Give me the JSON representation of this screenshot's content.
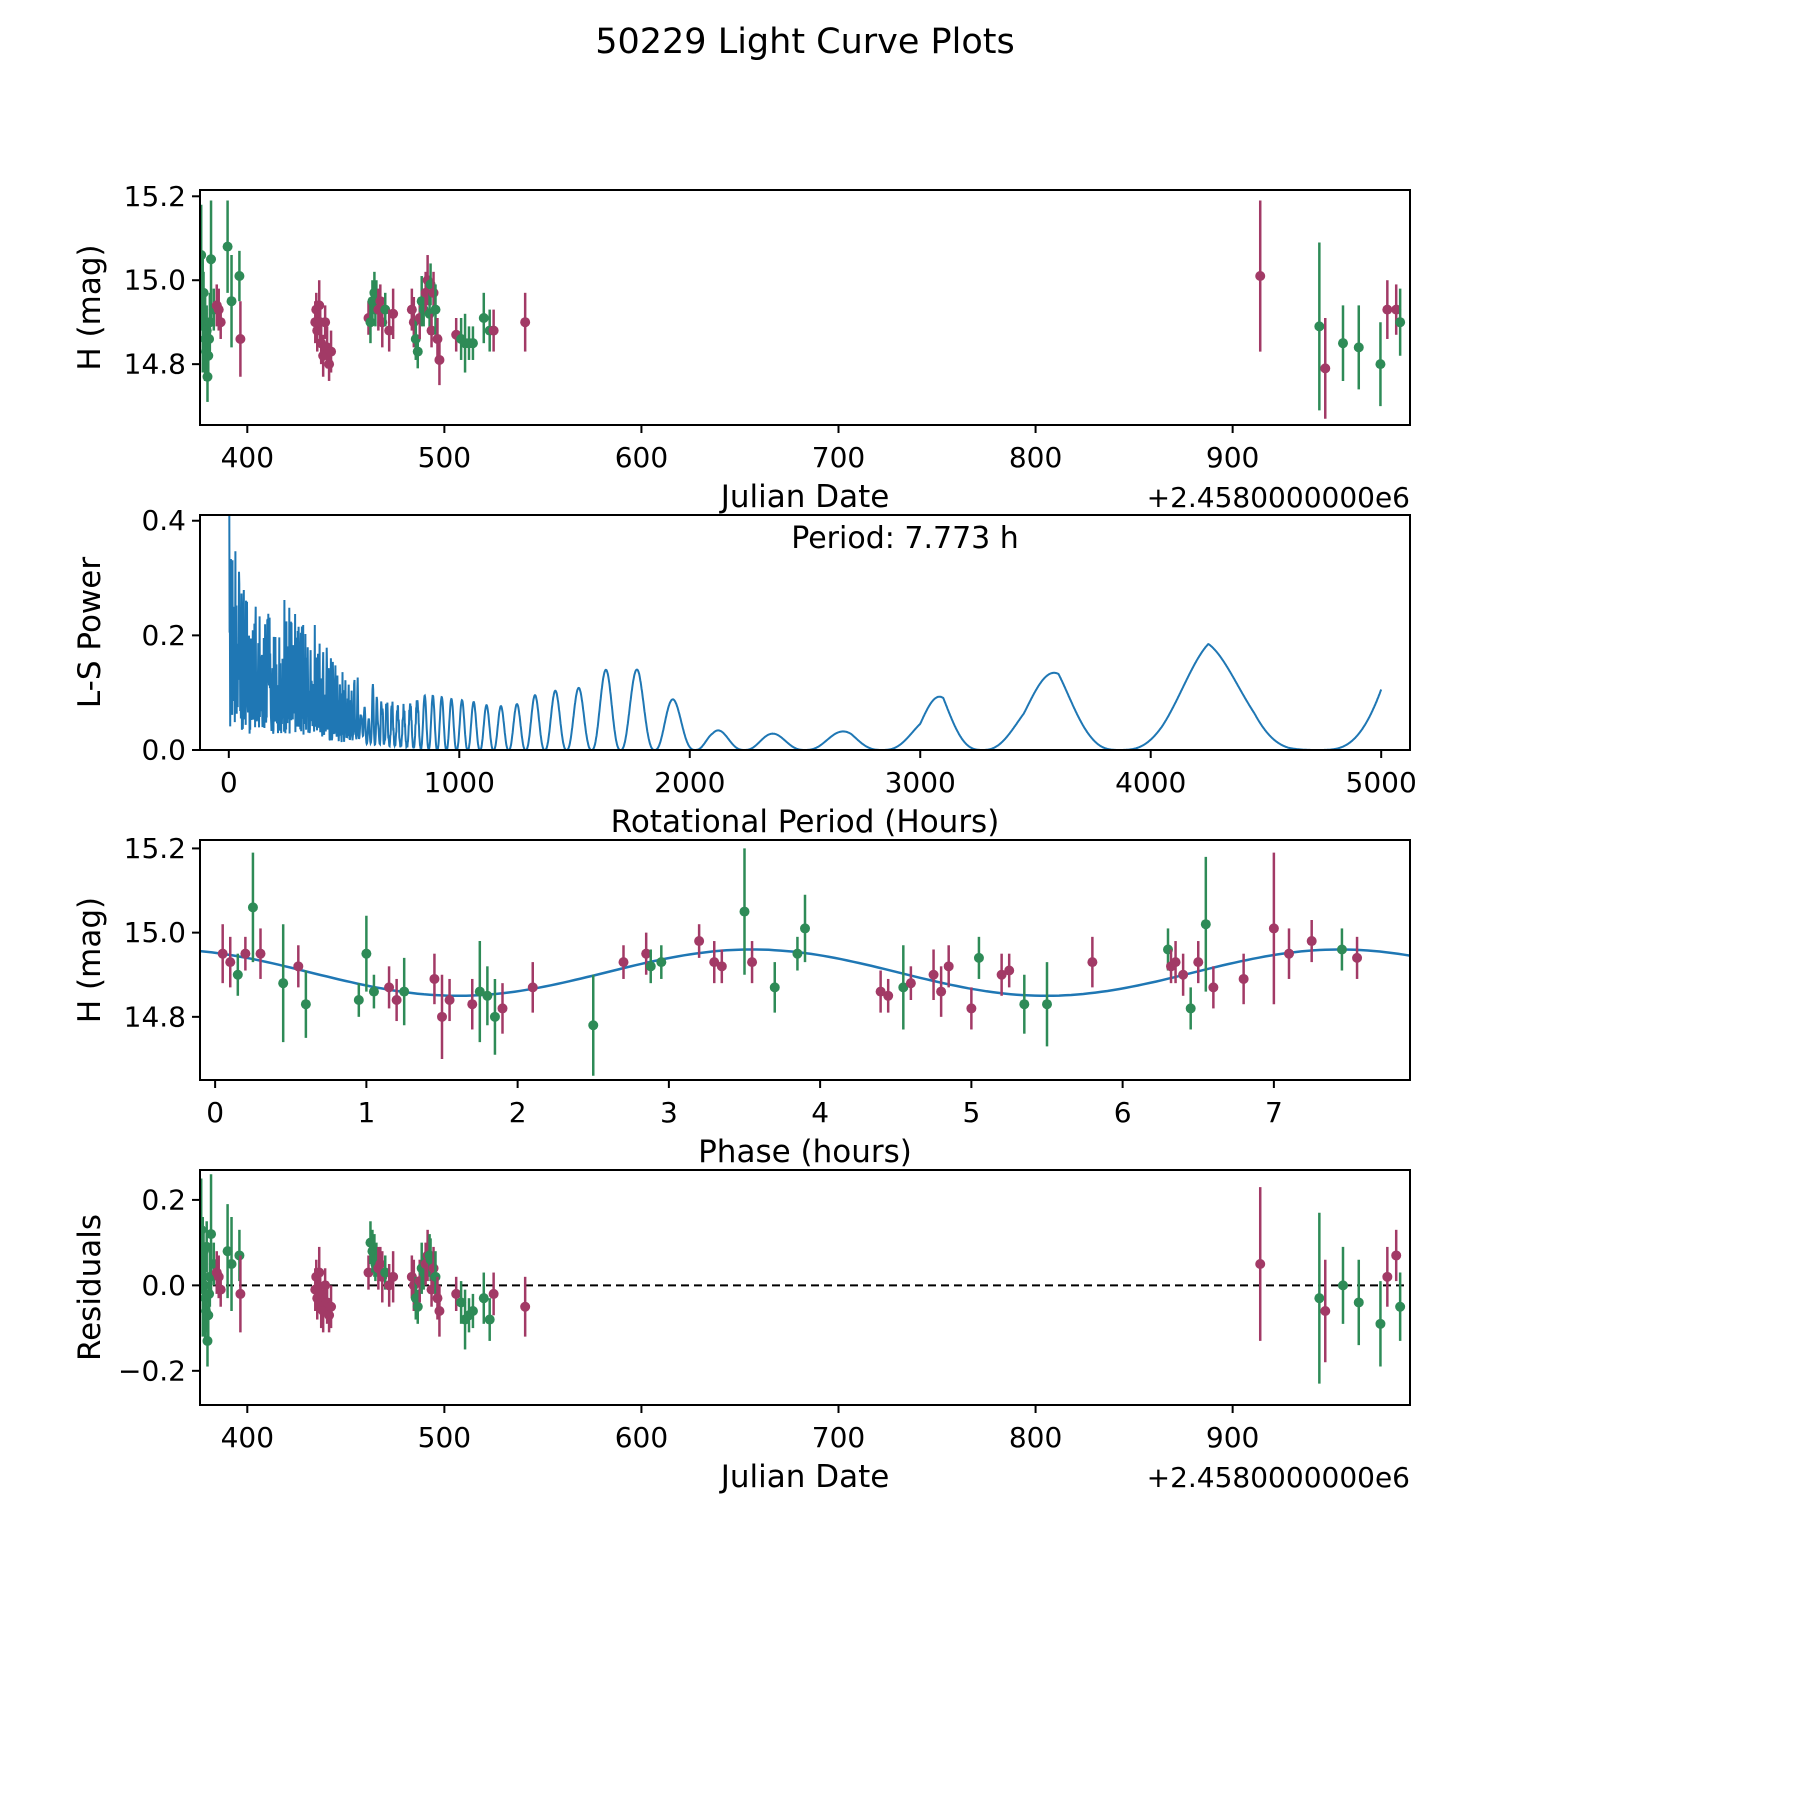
{
  "title": "50229 Light Curve Plots",
  "colors": {
    "green": "#2e8b57",
    "purple": "#a23a66",
    "line_blue": "#1f77b4",
    "axis": "#000000"
  },
  "chart_data": [
    {
      "type": "scatter",
      "id": "lightcurve",
      "xlabel": "Julian Date",
      "ylabel": "H (mag)",
      "x_offset_label": "+2.4580000000e6",
      "xlim": [
        376,
        990
      ],
      "ylim": [
        14.655,
        15.215
      ],
      "xticks": [
        400,
        500,
        600,
        700,
        800,
        900
      ],
      "xticklabels": [
        "400",
        "500",
        "600",
        "700",
        "800",
        "900"
      ],
      "yticks": [
        14.8,
        15.0,
        15.2
      ],
      "yticklabels": [
        "14.8",
        "15.0",
        "15.2"
      ],
      "points": [
        [
          376.6,
          15.06,
          0.12,
          "g",
          0.13
        ],
        [
          377.0,
          14.97,
          0.09,
          "g",
          0.07
        ],
        [
          377.4,
          14.92,
          0.14,
          "g",
          0.02
        ],
        [
          377.8,
          14.97,
          0.05,
          "g",
          0.08
        ],
        [
          378.2,
          14.9,
          0.06,
          "g",
          0.0
        ],
        [
          378.6,
          14.86,
          0.1,
          "g",
          -0.03
        ],
        [
          379.0,
          14.83,
          0.05,
          "g",
          -0.06
        ],
        [
          379.4,
          14.88,
          0.06,
          "g",
          0.09
        ],
        [
          379.8,
          14.77,
          0.06,
          "g",
          -0.13
        ],
        [
          380.2,
          14.82,
          0.05,
          "g",
          -0.07
        ],
        [
          380.6,
          14.86,
          0.05,
          "g",
          -0.02
        ],
        [
          381.0,
          14.9,
          0.07,
          "g",
          0.02
        ],
        [
          381.6,
          15.05,
          0.14,
          "g",
          0.12
        ],
        [
          383.0,
          14.93,
          0.05,
          "g",
          0.05
        ],
        [
          384.5,
          14.94,
          0.05,
          "p",
          0.03
        ],
        [
          385.5,
          14.93,
          0.05,
          "p",
          0.02
        ],
        [
          386.5,
          14.9,
          0.04,
          "p",
          -0.01
        ],
        [
          390.0,
          15.08,
          0.11,
          "g",
          0.08
        ],
        [
          392.0,
          14.95,
          0.11,
          "g",
          0.05
        ],
        [
          396.0,
          15.01,
          0.06,
          "g",
          0.07
        ],
        [
          396.5,
          14.86,
          0.09,
          "p",
          -0.02
        ],
        [
          434.5,
          14.9,
          0.05,
          "p",
          -0.01
        ],
        [
          435.0,
          14.93,
          0.04,
          "p",
          0.02
        ],
        [
          435.5,
          14.88,
          0.05,
          "p",
          -0.03
        ],
        [
          436.5,
          14.94,
          0.06,
          "p",
          0.03
        ],
        [
          437.0,
          14.9,
          0.04,
          "p",
          -0.02
        ],
        [
          437.5,
          14.85,
          0.05,
          "p",
          -0.05
        ],
        [
          438.5,
          14.82,
          0.05,
          "p",
          -0.06
        ],
        [
          439.5,
          14.9,
          0.04,
          "p",
          0.0
        ],
        [
          440.5,
          14.84,
          0.05,
          "p",
          -0.04
        ],
        [
          441.5,
          14.8,
          0.04,
          "p",
          -0.07
        ],
        [
          442.5,
          14.83,
          0.05,
          "p",
          -0.05
        ],
        [
          461.5,
          14.91,
          0.04,
          "p",
          0.03
        ],
        [
          462.5,
          14.9,
          0.05,
          "g",
          0.1
        ],
        [
          463.5,
          14.95,
          0.05,
          "g",
          0.08
        ],
        [
          464.5,
          14.97,
          0.05,
          "g",
          0.07
        ],
        [
          465.0,
          14.93,
          0.04,
          "g",
          0.05
        ],
        [
          465.5,
          14.96,
          0.04,
          "g",
          0.06
        ],
        [
          466.5,
          14.93,
          0.05,
          "p",
          0.04
        ],
        [
          467.5,
          14.95,
          0.04,
          "p",
          0.05
        ],
        [
          468.5,
          14.9,
          0.06,
          "p",
          0.02
        ],
        [
          470.0,
          14.93,
          0.04,
          "g",
          0.03
        ],
        [
          472.0,
          14.88,
          0.05,
          "p",
          0.0
        ],
        [
          474.0,
          14.92,
          0.06,
          "p",
          0.02
        ],
        [
          483.5,
          14.93,
          0.05,
          "p",
          0.02
        ],
        [
          484.5,
          14.9,
          0.06,
          "p",
          0.0
        ],
        [
          485.5,
          14.86,
          0.05,
          "g",
          -0.03
        ],
        [
          486.5,
          14.83,
          0.04,
          "g",
          -0.05
        ],
        [
          487.5,
          14.91,
          0.05,
          "p",
          0.01
        ],
        [
          488.5,
          14.95,
          0.06,
          "g",
          0.04
        ],
        [
          489.5,
          14.93,
          0.04,
          "g",
          0.03
        ],
        [
          490.5,
          14.97,
          0.05,
          "p",
          0.05
        ],
        [
          491.5,
          15.0,
          0.06,
          "p",
          0.07
        ],
        [
          492.5,
          14.92,
          0.05,
          "g",
          0.07
        ],
        [
          493.0,
          14.99,
          0.05,
          "g",
          0.06
        ],
        [
          493.5,
          14.88,
          0.04,
          "p",
          -0.01
        ],
        [
          494.5,
          14.97,
          0.05,
          "p",
          0.04
        ],
        [
          495.5,
          14.93,
          0.06,
          "g",
          0.02
        ],
        [
          496.5,
          14.86,
          0.05,
          "p",
          -0.03
        ],
        [
          497.5,
          14.81,
          0.06,
          "p",
          -0.06
        ],
        [
          506.0,
          14.87,
          0.04,
          "p",
          -0.02
        ],
        [
          508.5,
          14.86,
          0.05,
          "g",
          -0.04
        ],
        [
          510.5,
          14.85,
          0.07,
          "g",
          -0.08
        ],
        [
          512.5,
          14.85,
          0.04,
          "g",
          -0.07
        ],
        [
          514.5,
          14.85,
          0.04,
          "g",
          -0.06
        ],
        [
          520.0,
          14.91,
          0.06,
          "g",
          -0.03
        ],
        [
          523.0,
          14.88,
          0.05,
          "g",
          -0.08
        ],
        [
          525.0,
          14.88,
          0.05,
          "p",
          -0.02
        ],
        [
          541.0,
          14.9,
          0.07,
          "p",
          -0.05
        ],
        [
          914.0,
          15.01,
          0.18,
          "p",
          0.05
        ],
        [
          944.0,
          14.89,
          0.2,
          "g",
          -0.03
        ],
        [
          947.0,
          14.79,
          0.12,
          "p",
          -0.06
        ],
        [
          956.0,
          14.85,
          0.09,
          "g",
          0.0
        ],
        [
          964.0,
          14.84,
          0.1,
          "g",
          -0.04
        ],
        [
          975.0,
          14.8,
          0.1,
          "g",
          -0.09
        ],
        [
          978.5,
          14.93,
          0.07,
          "p",
          0.02
        ],
        [
          983.0,
          14.93,
          0.06,
          "p",
          0.07
        ],
        [
          985.0,
          14.9,
          0.08,
          "g",
          -0.05
        ]
      ]
    },
    {
      "type": "line",
      "id": "periodogram",
      "xlabel": "Rotational Period (Hours)",
      "ylabel": "L-S Power",
      "annotation": "Period: 7.773 h",
      "period_hours": 7.773,
      "xlim": [
        -125,
        5125
      ],
      "ylim": [
        0,
        0.41
      ],
      "xticks": [
        0,
        1000,
        2000,
        3000,
        4000,
        5000
      ],
      "xticklabels": [
        "0",
        "1000",
        "2000",
        "3000",
        "4000",
        "5000"
      ],
      "yticks": [
        0.0,
        0.2,
        0.4
      ],
      "yticklabels": [
        "0.0",
        "0.2",
        "0.4"
      ],
      "envelope": [
        [
          2,
          0.42
        ],
        [
          20,
          0.38
        ],
        [
          60,
          0.3
        ],
        [
          120,
          0.26
        ],
        [
          200,
          0.24
        ],
        [
          260,
          0.28
        ],
        [
          330,
          0.26
        ],
        [
          400,
          0.2
        ],
        [
          470,
          0.15
        ],
        [
          550,
          0.13
        ],
        [
          650,
          0.11
        ],
        [
          750,
          0.08
        ],
        [
          850,
          0.1
        ],
        [
          950,
          0.09
        ],
        [
          1050,
          0.085
        ],
        [
          1150,
          0.075
        ],
        [
          1250,
          0.08
        ],
        [
          1350,
          0.1
        ],
        [
          1450,
          0.105
        ],
        [
          1550,
          0.11
        ],
        [
          1650,
          0.145
        ],
        [
          1780,
          0.14
        ],
        [
          1900,
          0.1
        ],
        [
          2000,
          0.06
        ],
        [
          2100,
          0.035
        ],
        [
          2250,
          0.03
        ],
        [
          2400,
          0.028
        ],
        [
          2550,
          0.025
        ],
        [
          2700,
          0.035
        ],
        [
          2850,
          0.025
        ],
        [
          3000,
          0.05
        ],
        [
          3100,
          0.12
        ],
        [
          3250,
          0.08
        ],
        [
          3450,
          0.09
        ],
        [
          3600,
          0.15
        ],
        [
          3750,
          0.11
        ],
        [
          3900,
          0.05
        ],
        [
          4050,
          0.1
        ],
        [
          4250,
          0.185
        ],
        [
          4450,
          0.13
        ],
        [
          4600,
          0.05
        ],
        [
          4750,
          0.04
        ],
        [
          5000,
          0.26
        ]
      ],
      "modulation": {
        "C": 21250,
        "sharpen": 1.3,
        "dense_C": 260000,
        "dense_limit": 800
      }
    },
    {
      "type": "scatter+line",
      "id": "phase",
      "xlabel": "Phase (hours)",
      "ylabel": "H (mag)",
      "xlim": [
        -0.1,
        7.9
      ],
      "ylim": [
        14.65,
        15.22
      ],
      "xticks": [
        0,
        1,
        2,
        3,
        4,
        5,
        6,
        7
      ],
      "xticklabels": [
        "0",
        "1",
        "2",
        "3",
        "4",
        "5",
        "6",
        "7"
      ],
      "yticks": [
        14.8,
        15.0,
        15.2
      ],
      "yticklabels": [
        "14.8",
        "15.0",
        "15.2"
      ],
      "fit": {
        "mean": 14.905,
        "amplitude": 0.055,
        "period": 3.8865,
        "peak_phase": 3.55
      },
      "points": [
        [
          0.05,
          14.95,
          0.07,
          "p"
        ],
        [
          0.1,
          14.93,
          0.06,
          "p"
        ],
        [
          0.15,
          14.9,
          0.05,
          "g"
        ],
        [
          0.2,
          14.95,
          0.04,
          "p"
        ],
        [
          0.25,
          15.06,
          0.13,
          "g"
        ],
        [
          0.3,
          14.95,
          0.06,
          "p"
        ],
        [
          0.45,
          14.88,
          0.14,
          "g"
        ],
        [
          0.55,
          14.92,
          0.05,
          "p"
        ],
        [
          0.6,
          14.83,
          0.08,
          "g"
        ],
        [
          0.95,
          14.84,
          0.04,
          "g"
        ],
        [
          1.0,
          14.95,
          0.09,
          "g"
        ],
        [
          1.05,
          14.86,
          0.04,
          "g"
        ],
        [
          1.15,
          14.87,
          0.05,
          "p"
        ],
        [
          1.2,
          14.84,
          0.05,
          "p"
        ],
        [
          1.25,
          14.86,
          0.08,
          "g"
        ],
        [
          1.45,
          14.89,
          0.06,
          "p"
        ],
        [
          1.5,
          14.8,
          0.1,
          "p"
        ],
        [
          1.55,
          14.84,
          0.05,
          "p"
        ],
        [
          1.7,
          14.83,
          0.06,
          "p"
        ],
        [
          1.75,
          14.86,
          0.12,
          "g"
        ],
        [
          1.8,
          14.85,
          0.07,
          "g"
        ],
        [
          1.85,
          14.8,
          0.09,
          "g"
        ],
        [
          1.9,
          14.82,
          0.06,
          "p"
        ],
        [
          2.1,
          14.87,
          0.06,
          "p"
        ],
        [
          2.5,
          14.78,
          0.12,
          "g"
        ],
        [
          2.7,
          14.93,
          0.04,
          "p"
        ],
        [
          2.85,
          14.95,
          0.05,
          "p"
        ],
        [
          2.88,
          14.92,
          0.04,
          "g"
        ],
        [
          2.95,
          14.93,
          0.04,
          "g"
        ],
        [
          3.2,
          14.98,
          0.04,
          "p"
        ],
        [
          3.3,
          14.93,
          0.05,
          "p"
        ],
        [
          3.35,
          14.92,
          0.04,
          "p"
        ],
        [
          3.5,
          15.05,
          0.15,
          "g"
        ],
        [
          3.55,
          14.93,
          0.05,
          "p"
        ],
        [
          3.7,
          14.87,
          0.06,
          "g"
        ],
        [
          3.85,
          14.95,
          0.04,
          "g"
        ],
        [
          3.9,
          15.01,
          0.08,
          "g"
        ],
        [
          4.4,
          14.86,
          0.05,
          "p"
        ],
        [
          4.45,
          14.85,
          0.04,
          "p"
        ],
        [
          4.55,
          14.87,
          0.1,
          "g"
        ],
        [
          4.6,
          14.88,
          0.04,
          "p"
        ],
        [
          4.75,
          14.9,
          0.06,
          "p"
        ],
        [
          4.8,
          14.86,
          0.06,
          "p"
        ],
        [
          4.85,
          14.92,
          0.05,
          "p"
        ],
        [
          5.0,
          14.82,
          0.05,
          "p"
        ],
        [
          5.05,
          14.94,
          0.05,
          "g"
        ],
        [
          5.2,
          14.9,
          0.05,
          "p"
        ],
        [
          5.25,
          14.91,
          0.04,
          "p"
        ],
        [
          5.35,
          14.83,
          0.07,
          "g"
        ],
        [
          5.5,
          14.83,
          0.1,
          "g"
        ],
        [
          5.8,
          14.93,
          0.06,
          "p"
        ],
        [
          6.3,
          14.96,
          0.05,
          "g"
        ],
        [
          6.32,
          14.92,
          0.04,
          "p"
        ],
        [
          6.35,
          14.93,
          0.05,
          "p"
        ],
        [
          6.4,
          14.9,
          0.05,
          "p"
        ],
        [
          6.45,
          14.82,
          0.05,
          "g"
        ],
        [
          6.5,
          14.93,
          0.05,
          "p"
        ],
        [
          6.55,
          15.02,
          0.16,
          "g"
        ],
        [
          6.6,
          14.87,
          0.05,
          "p"
        ],
        [
          6.8,
          14.89,
          0.06,
          "p"
        ],
        [
          7.0,
          15.01,
          0.18,
          "p"
        ],
        [
          7.1,
          14.95,
          0.06,
          "p"
        ],
        [
          7.25,
          14.98,
          0.05,
          "p"
        ],
        [
          7.45,
          14.96,
          0.05,
          "g"
        ],
        [
          7.55,
          14.94,
          0.05,
          "p"
        ]
      ]
    },
    {
      "type": "scatter",
      "id": "residuals",
      "xlabel": "Julian Date",
      "ylabel": "Residuals",
      "x_offset_label": "+2.4580000000e6",
      "xlim": [
        376,
        990
      ],
      "ylim": [
        -0.28,
        0.27
      ],
      "xticks": [
        400,
        500,
        600,
        700,
        800,
        900
      ],
      "xticklabels": [
        "400",
        "500",
        "600",
        "700",
        "800",
        "900"
      ],
      "yticks": [
        -0.2,
        0.0,
        0.2
      ],
      "yticklabels": [
        "−0.2",
        "0.0",
        "0.2"
      ],
      "zero_line": true,
      "points_from": "lightcurve_residual_column"
    }
  ]
}
